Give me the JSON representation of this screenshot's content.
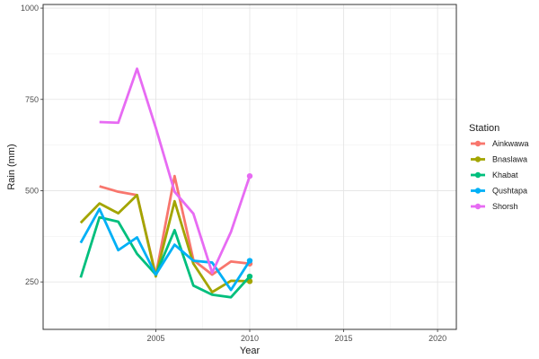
{
  "chart_data": {
    "type": "line",
    "xlabel": "Year",
    "ylabel": "Rain (mm)",
    "xlim": [
      1999,
      2021
    ],
    "ylim": [
      120,
      1010
    ],
    "x_ticks": [
      2005,
      2010,
      2015,
      2020
    ],
    "y_ticks": [
      250,
      500,
      750,
      1000
    ],
    "grid": true,
    "legend": {
      "title": "Station",
      "position": "right"
    },
    "series": [
      {
        "name": "Ainkwawa",
        "color": "#F8766D",
        "points": [
          [
            2002,
            512
          ],
          [
            2003,
            497
          ],
          [
            2004,
            488
          ],
          [
            2005,
            268
          ],
          [
            2006,
            540
          ],
          [
            2007,
            310
          ],
          [
            2008,
            270
          ],
          [
            2009,
            306
          ],
          [
            2010,
            300
          ]
        ]
      },
      {
        "name": "Bnaslawa",
        "color": "#A3A500",
        "points": [
          [
            2001,
            412
          ],
          [
            2002,
            465
          ],
          [
            2003,
            438
          ],
          [
            2004,
            488
          ],
          [
            2005,
            265
          ],
          [
            2006,
            471
          ],
          [
            2007,
            300
          ],
          [
            2008,
            222
          ],
          [
            2009,
            253
          ],
          [
            2010,
            252
          ]
        ]
      },
      {
        "name": "Khabat",
        "color": "#00BF7D",
        "points": [
          [
            2001,
            262
          ],
          [
            2002,
            427
          ],
          [
            2003,
            415
          ],
          [
            2004,
            327
          ],
          [
            2005,
            270
          ],
          [
            2006,
            392
          ],
          [
            2007,
            240
          ],
          [
            2008,
            215
          ],
          [
            2009,
            208
          ],
          [
            2010,
            265
          ]
        ]
      },
      {
        "name": "Qushtapa",
        "color": "#00B0F6",
        "points": [
          [
            2001,
            357
          ],
          [
            2002,
            450
          ],
          [
            2003,
            337
          ],
          [
            2004,
            372
          ],
          [
            2005,
            270
          ],
          [
            2006,
            352
          ],
          [
            2007,
            308
          ],
          [
            2008,
            303
          ],
          [
            2009,
            228
          ],
          [
            2010,
            308
          ]
        ]
      },
      {
        "name": "Shorsh",
        "color": "#E76BF3",
        "points": [
          [
            2002,
            688
          ],
          [
            2003,
            686
          ],
          [
            2004,
            834
          ],
          [
            2005,
            672
          ],
          [
            2006,
            497
          ],
          [
            2007,
            437
          ],
          [
            2008,
            275
          ],
          [
            2009,
            387
          ],
          [
            2010,
            540
          ]
        ]
      }
    ]
  }
}
